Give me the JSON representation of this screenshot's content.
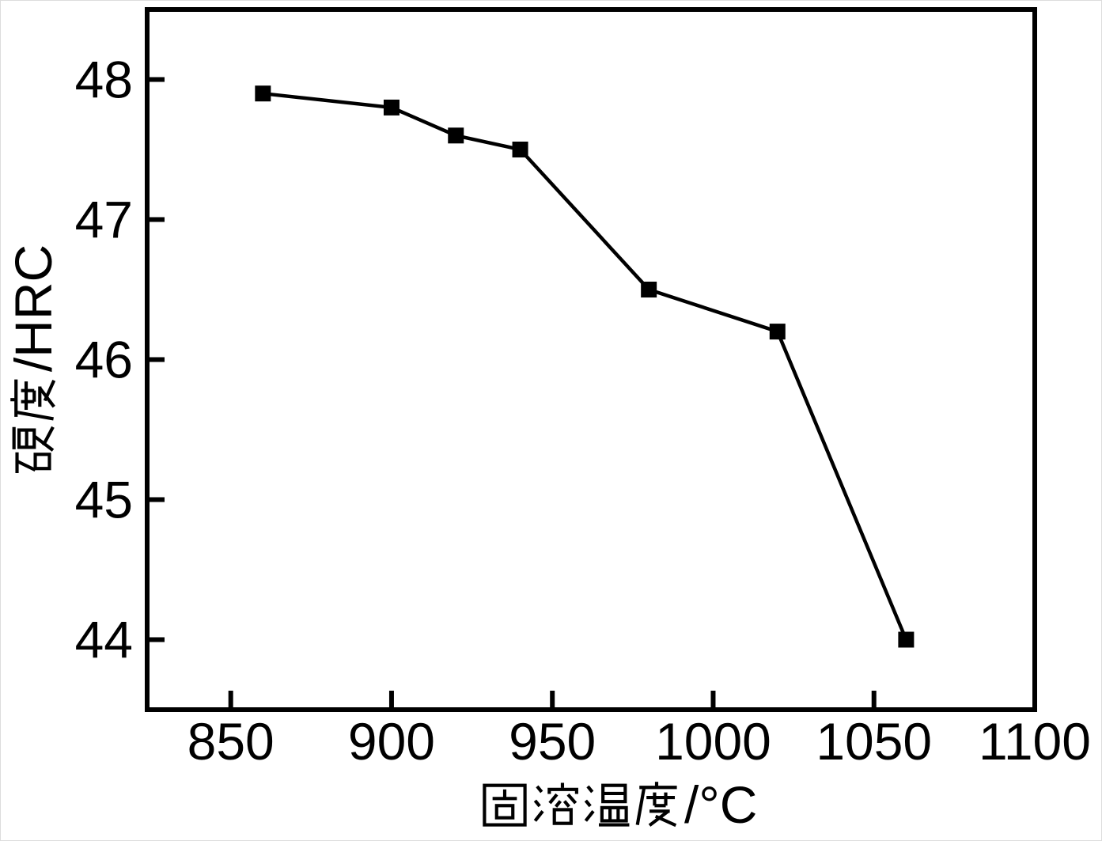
{
  "figure": {
    "background": "#ffffff",
    "edge_color": "#dcdcdc"
  },
  "chart_data": {
    "type": "line",
    "title": "",
    "xlabel": "固溶温度/°C",
    "xlabel_cjk": "固溶温度",
    "xlabel_suffix": "/°C",
    "ylabel": "硬度/HRC",
    "ylabel_cjk": "硬度",
    "ylabel_suffix": "/HRC",
    "x": [
      860,
      900,
      920,
      940,
      980,
      1020,
      1060
    ],
    "y": [
      47.9,
      47.8,
      47.6,
      47.5,
      46.5,
      46.2,
      44.0
    ],
    "xticks": [
      850,
      900,
      950,
      1000,
      1050,
      1100
    ],
    "yticks": [
      44,
      45,
      46,
      47,
      48
    ],
    "xlim": [
      824,
      1100
    ],
    "ylim": [
      43.5,
      48.5
    ],
    "grid": false,
    "legend": false,
    "marker": "filled-square",
    "line_color": "#000000",
    "marker_color": "#000000",
    "axis_color": "#000000",
    "text_color": "#000000"
  }
}
